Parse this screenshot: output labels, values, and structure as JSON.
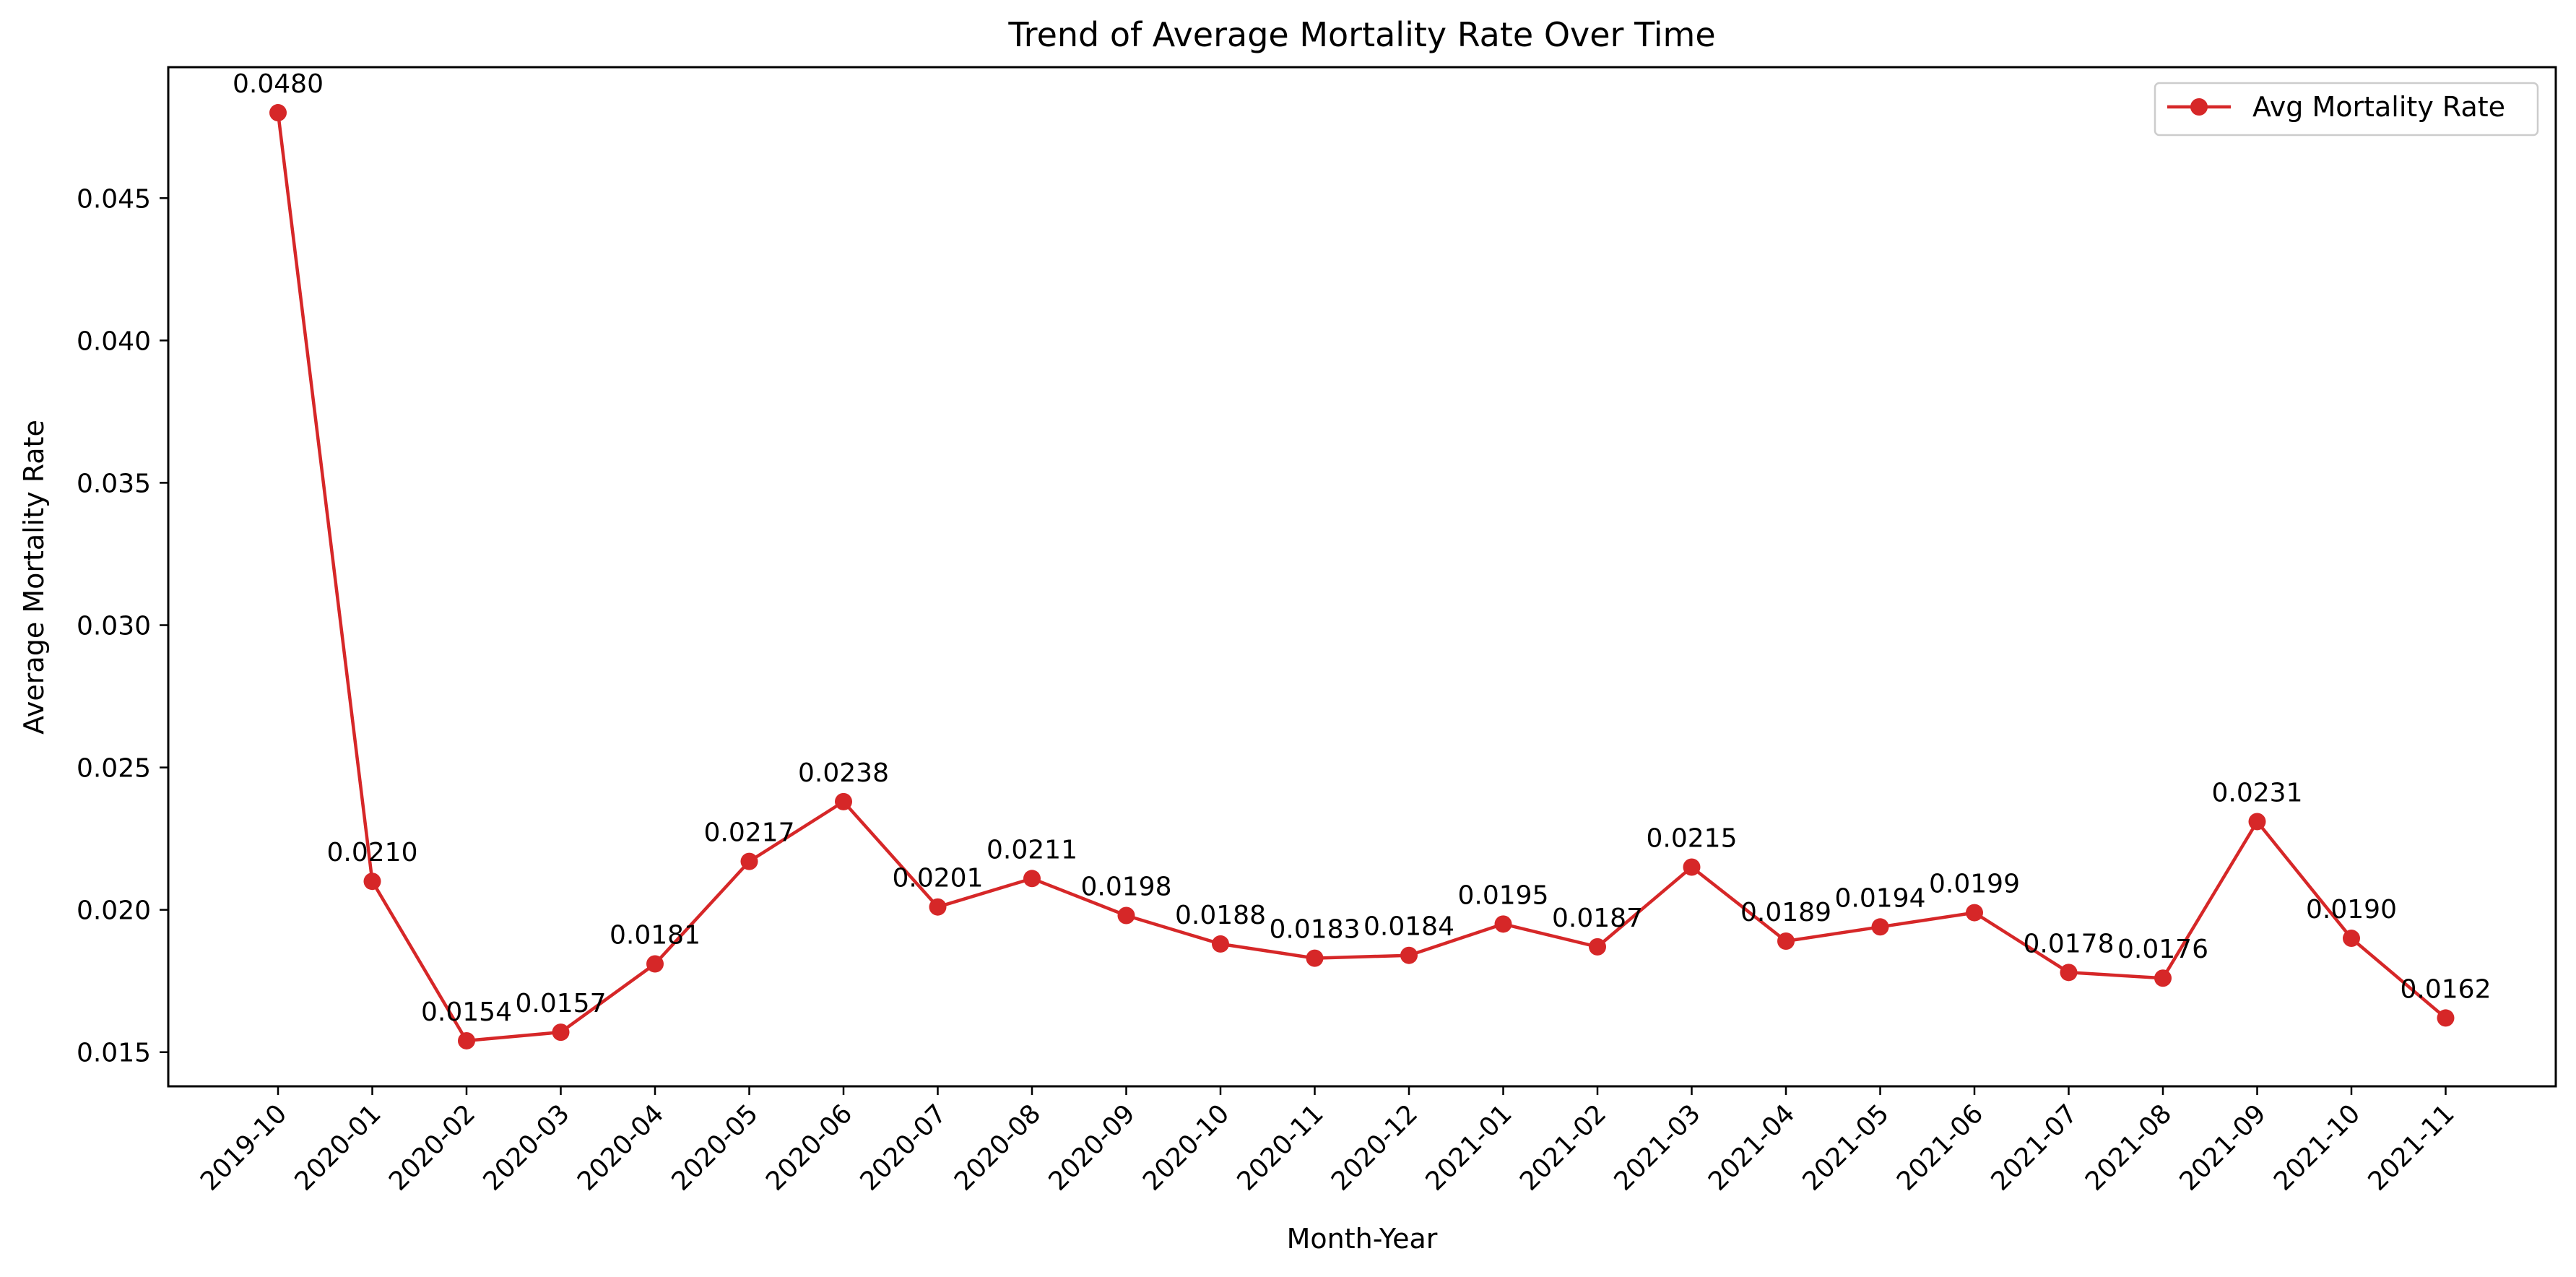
{
  "chart_data": {
    "type": "line",
    "title": "Trend of Average Mortality Rate Over Time",
    "xlabel": "Month-Year",
    "ylabel": "Average Mortality Rate",
    "ylim": [
      0.0138,
      0.0496
    ],
    "yticks": [
      0.015,
      0.02,
      0.025,
      0.03,
      0.035,
      0.04,
      0.045
    ],
    "ytick_labels": [
      "0.015",
      "0.020",
      "0.025",
      "0.030",
      "0.035",
      "0.040",
      "0.045"
    ],
    "grid": false,
    "legend_position": "top-right",
    "categories": [
      "2019-10",
      "2020-01",
      "2020-02",
      "2020-03",
      "2020-04",
      "2020-05",
      "2020-06",
      "2020-07",
      "2020-08",
      "2020-09",
      "2020-10",
      "2020-11",
      "2020-12",
      "2021-01",
      "2021-02",
      "2021-03",
      "2021-04",
      "2021-05",
      "2021-06",
      "2021-07",
      "2021-08",
      "2021-09",
      "2021-10",
      "2021-11"
    ],
    "series": [
      {
        "name": "Avg Mortality Rate",
        "color": "#d62728",
        "marker": "circle",
        "values": [
          0.048,
          0.021,
          0.0154,
          0.0157,
          0.0181,
          0.0217,
          0.0238,
          0.0201,
          0.0211,
          0.0198,
          0.0188,
          0.0183,
          0.0184,
          0.0195,
          0.0187,
          0.0215,
          0.0189,
          0.0194,
          0.0199,
          0.0178,
          0.0176,
          0.0231,
          0.019,
          0.0162
        ],
        "labels": [
          "0.0480",
          "0.0210",
          "0.0154",
          "0.0157",
          "0.0181",
          "0.0217",
          "0.0238",
          "0.0201",
          "0.0211",
          "0.0198",
          "0.0188",
          "0.0183",
          "0.0184",
          "0.0195",
          "0.0187",
          "0.0215",
          "0.0189",
          "0.0194",
          "0.0199",
          "0.0178",
          "0.0176",
          "0.0231",
          "0.0190",
          "0.0162"
        ]
      }
    ]
  }
}
